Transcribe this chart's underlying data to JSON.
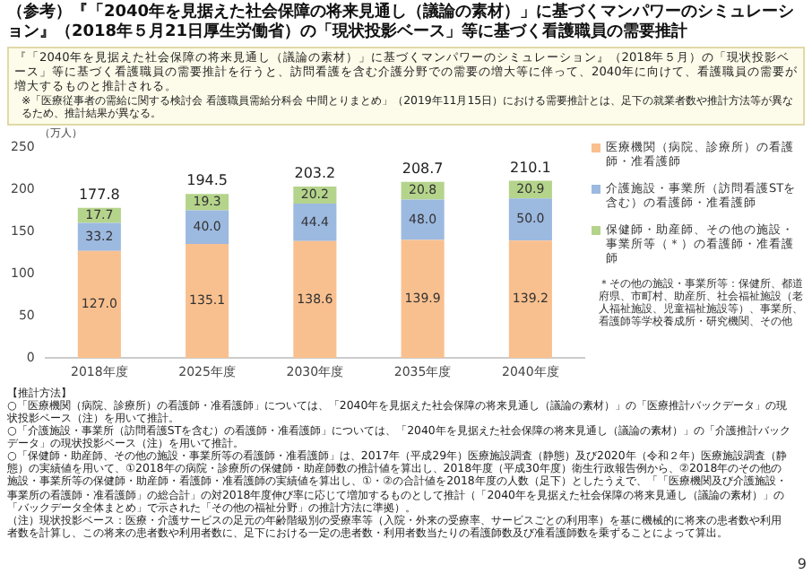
{
  "chart_data": {
    "type": "bar",
    "title": "（参考）『「2040年を見据えた社会保障の将来見通し（議論の素材）」に基づくマンパワーのシミュレーション』（2018年５月21日厚生労働省）の「現状投影ベース」等に基づく看護職員の需要推計",
    "subtitle": "『「2040年を見据えた社会保障の将来見通し（議論の素材）」に基づくマンパワーのシミュレーション』（2018年５月）の「現状投影ベース」等に基づく看護職員の需要推計を行うと、訪問看護を含む介護分野での需要の増大等に伴って、2040年に向けて、看護職員の需要が増大するものと推計される。",
    "ylabel": "（万人）",
    "categories": [
      "2018年度",
      "2025年度",
      "2030年度",
      "2035年度",
      "2040年度"
    ],
    "stacked": true,
    "series": [
      {
        "name": "医療機関（病院、診療所）の看護師・准看護師",
        "color": "#f9c08f",
        "values": [
          127.0,
          135.1,
          138.6,
          139.9,
          139.2
        ],
        "value_labels": [
          "127.0",
          "135.1",
          "138.6",
          "139.9",
          "139.2"
        ]
      },
      {
        "name": "介護施設・事業所（訪問看護STを含む）の看護師・准看護師",
        "color": "#9cb9e0",
        "values": [
          33.2,
          40.0,
          44.4,
          48.0,
          50.0
        ],
        "value_labels": [
          "33.2",
          "40.0",
          "44.4",
          "48.0",
          "50.0"
        ]
      },
      {
        "name": "保健師・助産師、その他の施設・事業所等（＊）の看護師・准看護師",
        "color": "#b5d48b",
        "values": [
          17.7,
          19.3,
          20.2,
          20.8,
          20.9
        ],
        "value_labels": [
          "17.7",
          "19.3",
          "20.2",
          "20.8",
          "20.9"
        ]
      }
    ],
    "totals": [
      "177.8",
      "194.5",
      "203.2",
      "208.7",
      "210.1"
    ],
    "ylim": [
      0,
      250
    ],
    "yticks": [
      0,
      50,
      100,
      150,
      200,
      250
    ],
    "legend": "right",
    "annotations": [
      "※「医療従事者の需給に関する検討会 看護職員需給分科会 中間とりまとめ」（2019年11月15日）における需要推計とは、足下の就業者数や推計方法等が異なるため、推計結果が異なる。",
      "＊その他の施設・事業所等：保健所、都道府県、市町村、助産所、社会福祉施設（老人福祉施設、児童福祉施設等）、事業所、看護師等学校養成所・研究機関、その他",
      "【推計方法】",
      "○「医療機関（病院、診療所）の看護師・准看護師」については、「2040年を見据えた社会保障の将来見通し（議論の素材）」の「医療推計バックデータ」の現状投影ベース（注）を用いて推計。",
      "○「介護施設・事業所（訪問看護STを含む）の看護師・准看護師」については、「2040年を見据えた社会保障の将来見通し（議論の素材）」の「介護推計バックデータ」の現状投影ベース（注）を用いて推計。",
      "○「保健師・助産師、その他の施設・事業所等の看護師・准看護師」は、2017年（平成29年）医療施設調査（静態）及び2020年（令和２年）医療施設調査（静態）の実績値を用いて、①2018年の病院・診療所の保健師・助産師数の推計値を算出し、2018年度（平成30年度）衛生行政報告例から、②2018年のその他の施設・事業所等の保健師・助産師・看護師・准看護師の実績値を算出し、①・②の合計値を2018年度の人数（足下）としたうえで、「「医療機関及び介護施設・事業所の看護師・准看護師」の総合計」の対2018年度伸び率に応じて増加するものとして推計（「2040年を見据えた社会保障の将来見通し（議論の素材）」の「バックデータ全体まとめ」で示された「その他の福祉分野」の推計方法に準拠）。",
      "（注）現状投影ベース：医療・介護サービスの足元の年齢階級別の受療率等（入院・外来の受療率、サービスごとの利用率）を基に機械的に将来の患者数や利用者数を計算し、この将来の患者数や利用者数に、足下における一定の患者数・利用者数当たりの看護師数及び准看護師数を乗ずることによって算出。",
      "9"
    ]
  }
}
